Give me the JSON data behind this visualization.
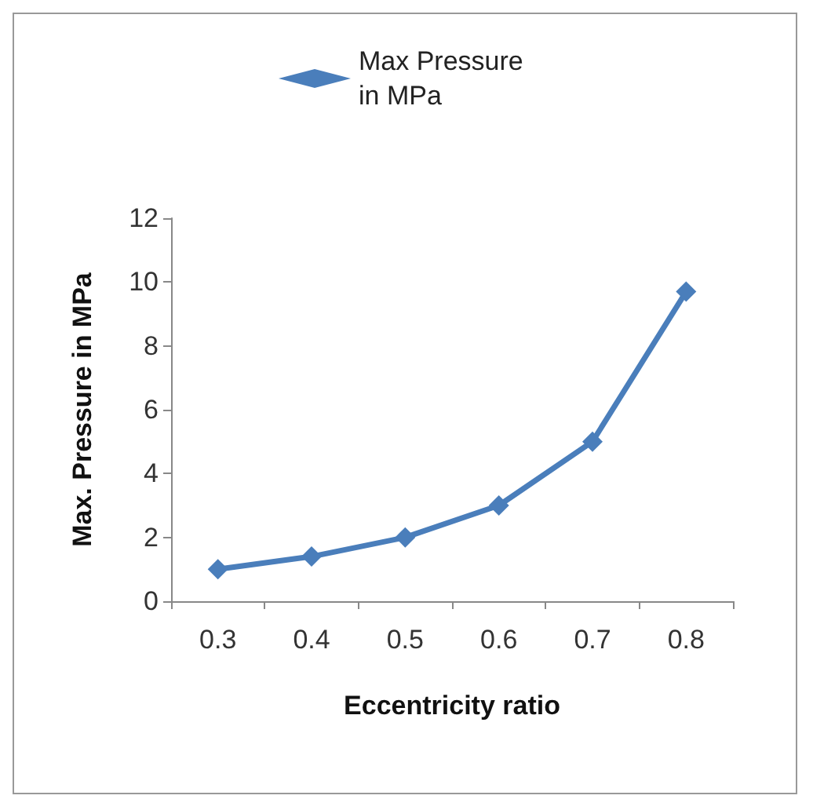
{
  "chart_data": {
    "type": "line",
    "xlabel": "Eccentricity ratio",
    "ylabel": "Max. Pressure in MPa",
    "categories": [
      "0.3",
      "0.4",
      "0.5",
      "0.6",
      "0.7",
      "0.8"
    ],
    "series": [
      {
        "name": "Max Pressure in MPa",
        "color": "#4a7ebb",
        "values": [
          1.0,
          1.4,
          2.0,
          3.0,
          5.0,
          9.7
        ]
      }
    ],
    "ylim": [
      0,
      12
    ],
    "yticks": [
      0,
      2,
      4,
      6,
      8,
      10,
      12
    ],
    "grid": false,
    "legend": "top",
    "marker": "diamond",
    "line_style": "solid"
  }
}
